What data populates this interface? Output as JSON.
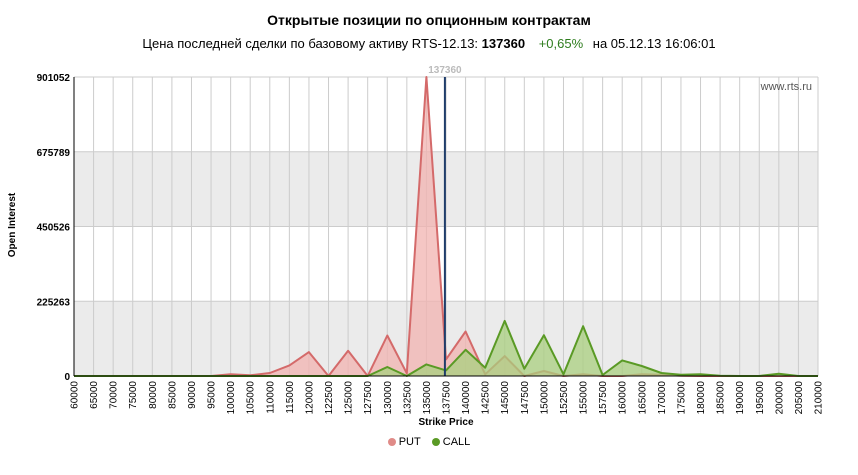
{
  "title": "Открытые позиции по опционным контрактам",
  "subtitle": {
    "prefix": "Цена последней сделки по базовому активу RTS-12.13:",
    "price": "137360",
    "change": "+0,65%",
    "suffix": "на 05.12.13 16:06:01"
  },
  "watermark": "www.rts.ru",
  "colors": {
    "put": "#d46a6a",
    "put_fill": "#f2b3b0",
    "call": "#5a9a25",
    "call_fill": "#a9cf7f",
    "price_line": "#1f3d6a"
  },
  "chart_data": {
    "type": "area",
    "title": "Открытые позиции по опционным контрактам",
    "xlabel": "Strike Price",
    "ylabel": "Open Interest",
    "x": [
      60000,
      65000,
      70000,
      75000,
      80000,
      85000,
      90000,
      95000,
      100000,
      105000,
      110000,
      115000,
      120000,
      122500,
      125000,
      127500,
      130000,
      132500,
      135000,
      137500,
      140000,
      142500,
      145000,
      147500,
      150000,
      152500,
      155000,
      157500,
      160000,
      165000,
      170000,
      175000,
      180000,
      185000,
      190000,
      195000,
      200000,
      205000,
      210000
    ],
    "x_ticks": [
      "60000",
      "65000",
      "70000",
      "75000",
      "80000",
      "85000",
      "90000",
      "95000",
      "100000",
      "105000",
      "110000",
      "115000",
      "120000",
      "122500",
      "125000",
      "127500",
      "130000",
      "132500",
      "135000",
      "137500",
      "140000",
      "142500",
      "145000",
      "147500",
      "150000",
      "152500",
      "155000",
      "157500",
      "160000",
      "165000",
      "170000",
      "175000",
      "180000",
      "185000",
      "190000",
      "195000",
      "200000",
      "205000",
      "210000"
    ],
    "y_ticks": [
      "0",
      "225263",
      "450526",
      "675789",
      "901052"
    ],
    "ylim": [
      0,
      901052
    ],
    "series": [
      {
        "name": "PUT",
        "values": [
          0,
          0,
          0,
          0,
          0,
          0,
          0,
          0,
          5000,
          2000,
          9000,
          32000,
          72000,
          0,
          76000,
          0,
          122000,
          8000,
          901052,
          50000,
          134000,
          5000,
          60000,
          0,
          15000,
          0,
          5000,
          0,
          0,
          5000,
          4000,
          1000,
          0,
          0,
          0,
          0,
          0,
          0,
          0
        ]
      },
      {
        "name": "CALL",
        "values": [
          0,
          0,
          0,
          0,
          0,
          0,
          0,
          0,
          0,
          0,
          0,
          0,
          0,
          0,
          0,
          0,
          27000,
          0,
          35000,
          17000,
          79000,
          25000,
          166000,
          22000,
          123000,
          5000,
          150000,
          3000,
          47000,
          30000,
          9000,
          4000,
          5000,
          1000,
          0,
          0,
          7000,
          0,
          0
        ]
      }
    ],
    "last_price": 137360,
    "legend": "bottom-center",
    "grid": true
  }
}
